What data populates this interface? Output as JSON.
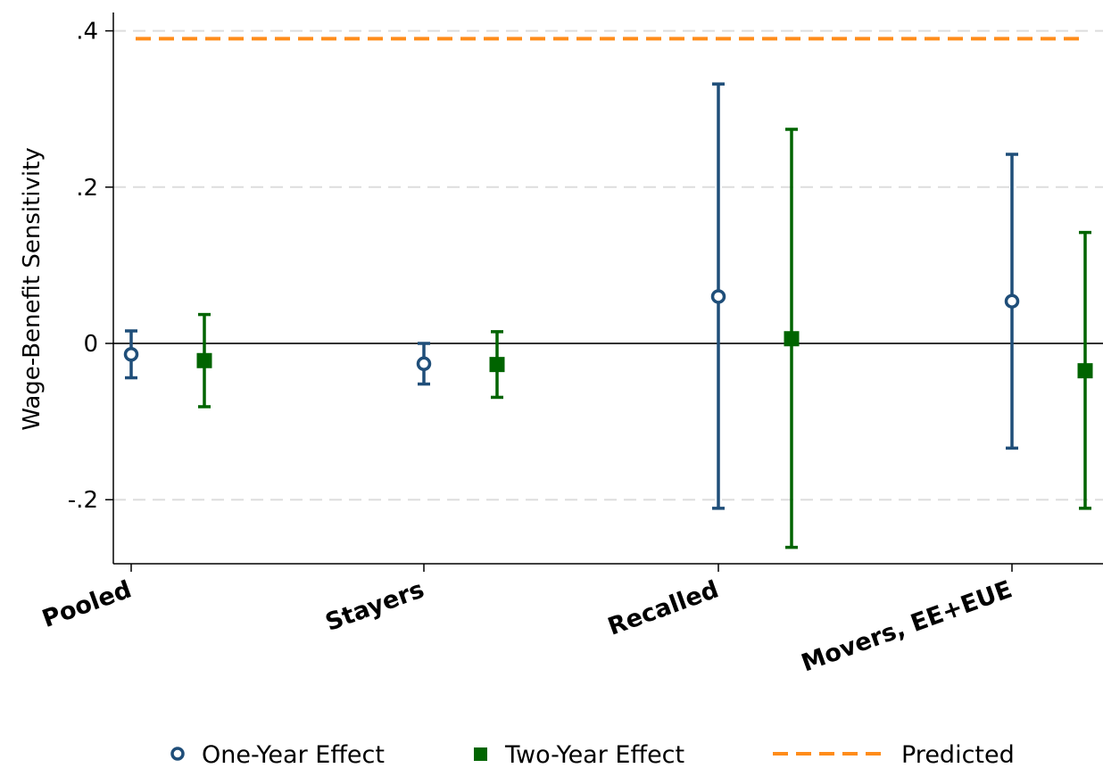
{
  "chart_data": {
    "type": "scatter",
    "title": "",
    "xlabel": "",
    "ylabel": "Wage-Benefit Sensitivity",
    "categories": [
      "Pooled",
      "Stayers",
      "Recalled",
      "Movers, EE+EUE"
    ],
    "ylim": [
      -0.28,
      0.42
    ],
    "yticks": [
      {
        "value": 0.4,
        "label": ".4"
      },
      {
        "value": 0.2,
        "label": ".2"
      },
      {
        "value": 0,
        "label": "0"
      },
      {
        "value": -0.2,
        "label": "-.2"
      }
    ],
    "grid": true,
    "legend_position": "bottom",
    "series": [
      {
        "name": "One-Year Effect",
        "marker": "hollow-circle",
        "color": "#1f4e79",
        "values": [
          -0.014,
          -0.026,
          0.06,
          0.054
        ],
        "ci_low": [
          -0.044,
          -0.052,
          -0.211,
          -0.134
        ],
        "ci_high": [
          0.016,
          0.0,
          0.332,
          0.242
        ]
      },
      {
        "name": "Two-Year Effect",
        "marker": "filled-square",
        "color": "#006400",
        "values": [
          -0.022,
          -0.027,
          0.006,
          -0.035
        ],
        "ci_low": [
          -0.081,
          -0.069,
          -0.261,
          -0.211
        ],
        "ci_high": [
          0.037,
          0.015,
          0.274,
          0.142
        ]
      }
    ],
    "reference_line": {
      "name": "Predicted",
      "value": 0.39,
      "color": "#ff8c1a",
      "style": "dashed"
    }
  }
}
